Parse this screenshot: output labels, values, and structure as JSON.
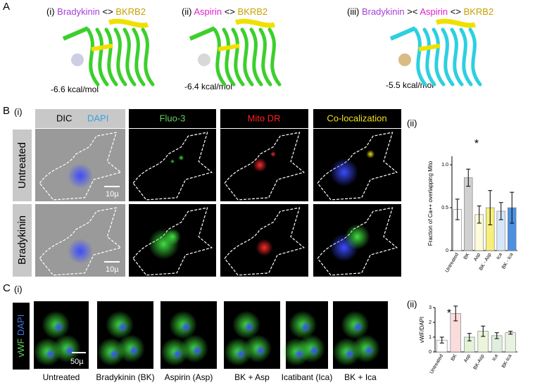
{
  "panel_a": {
    "letter": "A",
    "structures": [
      {
        "numeral": "(i)",
        "ligand": "Bradykinin",
        "op": "<>",
        "receptor": "BKRB2",
        "energy": "-6.6 kcal/mol"
      },
      {
        "numeral": "(ii)",
        "ligand": "Aspirin",
        "op": "<>",
        "receptor": "BKRB2",
        "energy": "-6.4 kcal/mol"
      },
      {
        "numeral": "(iii)",
        "ligand": "Bradykinin",
        "op": "><",
        "ligand2": "Aspirin",
        "op2": "<>",
        "receptor": "BKRB2",
        "energy": "-5.5 kcal/mol"
      }
    ]
  },
  "panel_b": {
    "letter": "B",
    "sub1": "(i)",
    "sub2": "(ii)",
    "channels": [
      "DIC",
      "DAPI",
      "Fluo-3",
      "Mito DR",
      "Co-localization"
    ],
    "rows": [
      "Untreated",
      "Bradykinin"
    ],
    "scale": "10µ"
  },
  "panel_c": {
    "letter": "C",
    "sub1": "(i)",
    "sub2": "(ii)",
    "stain": [
      "vWF",
      "DAPI"
    ],
    "conditions": [
      "Untreated",
      "Bradykinin (BK)",
      "Aspirin (Asp)",
      "BK + Asp",
      "Icatibant (Ica)",
      "BK + Ica"
    ],
    "scale": "50µ"
  },
  "chart_data": [
    {
      "type": "bar",
      "ylabel": "Fraction of Ca++ overlapping Mito",
      "annotation": "*",
      "categories": [
        "Untreated",
        "BK",
        "Asp",
        "BK - Asp",
        "Ica",
        "BK - Ica"
      ],
      "values": [
        0.48,
        0.85,
        0.42,
        0.5,
        0.46,
        0.5
      ],
      "errors": [
        0.12,
        0.1,
        0.1,
        0.2,
        0.1,
        0.18
      ],
      "colors": [
        "#ffffff",
        "#d0d0d0",
        "#fdfbd8",
        "#f7ef7a",
        "#d6e6fb",
        "#4e8fe0"
      ],
      "ylim": [
        0,
        1.1
      ],
      "yticks": [
        0,
        0.5,
        {
          "value": 1,
          "label": "1.0"
        }
      ]
    },
    {
      "type": "bar",
      "ylabel": "vWF/DAPI",
      "annotation": "*",
      "categories": [
        "Untreated",
        "BK",
        "Asp",
        "BK-Asp",
        "Ica",
        "BK-Ica"
      ],
      "values": [
        0.8,
        2.6,
        1.0,
        1.4,
        1.1,
        1.3
      ],
      "errors": [
        0.2,
        0.5,
        0.25,
        0.35,
        0.2,
        0.1
      ],
      "colors": [
        "#ffffff",
        "#fadcdc",
        "#e3f3d8",
        "#eaf5dc",
        "#dfeedd",
        "#e8f2e0"
      ],
      "ylim": [
        0,
        3
      ],
      "yticks": [
        0,
        1,
        2,
        3
      ]
    }
  ]
}
